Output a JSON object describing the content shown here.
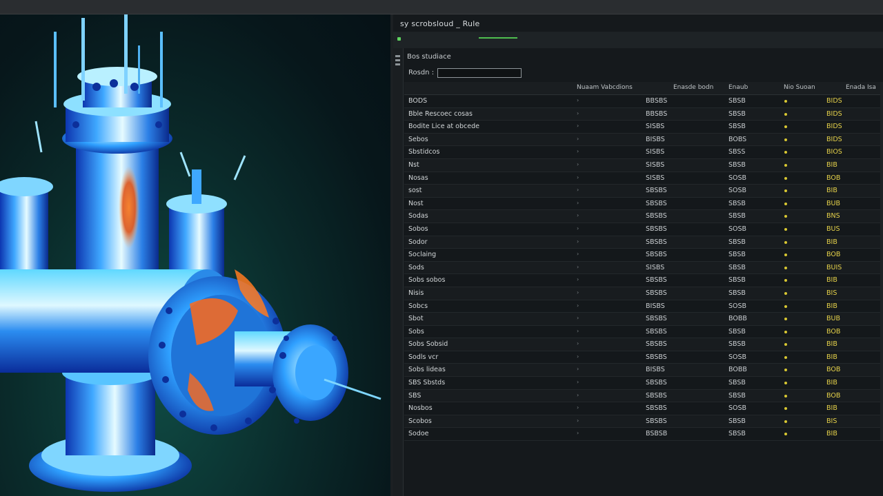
{
  "panel": {
    "title": "sy scrobsloud _ Rule",
    "section_label": "Bos studiace",
    "filter_label": "Rosdn :",
    "filter_value": "",
    "filter_placeholder": ""
  },
  "table": {
    "headers": {
      "col_a": "Nuaam Vabcdions",
      "col_b": "Enasde bodn",
      "col_c": "Enaub",
      "col_d": "Nio Suoan",
      "col_e": "Enada Isa"
    },
    "rows": [
      {
        "name": "BODS",
        "flag": "›",
        "v1": "BBSBS",
        "v2": "SBSB",
        "v3": "BIDS"
      },
      {
        "name": "Bble Rescoec cosas",
        "flag": "›",
        "v1": "BBSBS",
        "v2": "SBSB",
        "v3": "BIDS"
      },
      {
        "name": "Bodite Lice at obcede",
        "flag": "›",
        "v1": "SISBS",
        "v2": "SBSB",
        "v3": "BIDS"
      },
      {
        "name": "Sebos",
        "flag": "›",
        "v1": "BISBS",
        "v2": "BOBS",
        "v3": "BIDS"
      },
      {
        "name": "Sbstidcos",
        "flag": "›",
        "v1": "SISBS",
        "v2": "SBSS",
        "v3": "BIOS"
      },
      {
        "name": "Nst",
        "flag": "›",
        "v1": "SISBS",
        "v2": "SBSB",
        "v3": "BIB"
      },
      {
        "name": "Nosas",
        "flag": "›",
        "v1": "SISBS",
        "v2": "SOSB",
        "v3": "BOB"
      },
      {
        "name": "sost",
        "flag": "›",
        "v1": "SBSBS",
        "v2": "SOSB",
        "v3": "BIB"
      },
      {
        "name": "Nost",
        "flag": "›",
        "v1": "SBSBS",
        "v2": "SBSB",
        "v3": "BUB"
      },
      {
        "name": "Sodas",
        "flag": "›",
        "v1": "SBSBS",
        "v2": "SBSB",
        "v3": "BNS"
      },
      {
        "name": "Sobos",
        "flag": "›",
        "v1": "SBSBS",
        "v2": "SOSB",
        "v3": "BUS"
      },
      {
        "name": "Sodor",
        "flag": "›",
        "v1": "SBSBS",
        "v2": "SBSB",
        "v3": "BIB"
      },
      {
        "name": "Soclaing",
        "flag": "›",
        "v1": "SBSBS",
        "v2": "SBSB",
        "v3": "BOB"
      },
      {
        "name": "Sods",
        "flag": "›",
        "v1": "SISBS",
        "v2": "SBSB",
        "v3": "BUIS"
      },
      {
        "name": "Sobs sobos",
        "flag": "›",
        "v1": "SBSBS",
        "v2": "SBSB",
        "v3": "BIB"
      },
      {
        "name": "Nisis",
        "flag": "›",
        "v1": "SBSBS",
        "v2": "SBSB",
        "v3": "BIS"
      },
      {
        "name": "Sobcs",
        "flag": "›",
        "v1": "BISBS",
        "v2": "SOSB",
        "v3": "BIB"
      },
      {
        "name": "Sbot",
        "flag": "›",
        "v1": "SBSBS",
        "v2": "BOBB",
        "v3": "BUB"
      },
      {
        "name": "Sobs",
        "flag": "›",
        "v1": "SBSBS",
        "v2": "SBSB",
        "v3": "BOB"
      },
      {
        "name": "Sobs Sobsid",
        "flag": "›",
        "v1": "SBSBS",
        "v2": "SBSB",
        "v3": "BIB"
      },
      {
        "name": "Sodls vcr",
        "flag": "›",
        "v1": "SBSBS",
        "v2": "SOSB",
        "v3": "BIB"
      },
      {
        "name": "Sobs lideas",
        "flag": "›",
        "v1": "BISBS",
        "v2": "BOBB",
        "v3": "BOB"
      },
      {
        "name": "SBS Sbstds",
        "flag": "›",
        "v1": "SBSBS",
        "v2": "SBSB",
        "v3": "BIB"
      },
      {
        "name": "SBS",
        "flag": "›",
        "v1": "SBSBS",
        "v2": "SBSB",
        "v3": "BOB"
      },
      {
        "name": "Nosbos",
        "flag": "›",
        "v1": "SBSBS",
        "v2": "SOSB",
        "v3": "BIB"
      },
      {
        "name": "Scobos",
        "flag": "›",
        "v1": "SBSBS",
        "v2": "SBSB",
        "v3": "BIS"
      },
      {
        "name": "Sodoe",
        "flag": "›",
        "v1": "BSBSB",
        "v2": "SBSB",
        "v3": "BIB"
      }
    ]
  },
  "colors": {
    "background": "#101416",
    "panel": "#15191c",
    "accent_green": "#4fbf4f",
    "status_yellow": "#d9c832"
  },
  "icons": [
    "valve-assembly-3d-model",
    "status-dot-icon",
    "row-expand-icon"
  ]
}
